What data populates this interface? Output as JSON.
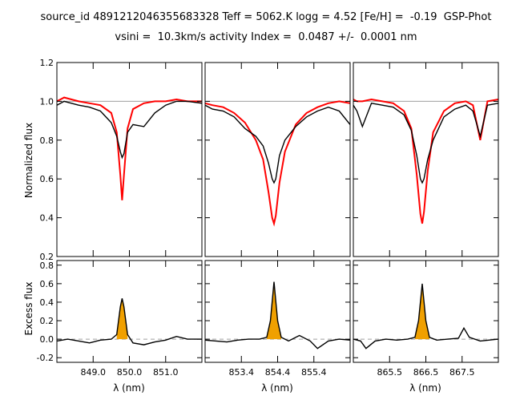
{
  "title": {
    "line1": "source_id 4891212046355683328 Teff = 5062.K logg = 4.52 [Fe/H] =  -0.19  GSP-Phot",
    "line2": "vsini =  10.3km/s activity Index =  0.0487 +/-  0.0001 nm"
  },
  "axes": {
    "top_ylabel": "Normalized flux",
    "bottom_ylabel": "Excess flux",
    "xlabel": "λ (nm)"
  },
  "colors": {
    "observed": "#000000",
    "model": "#ff0000",
    "excess_fill": "#f0a000",
    "reference": "#a0a0a0"
  },
  "chart_data": [
    {
      "type": "line",
      "panel": "normalized-flux-849",
      "ylim": [
        0.2,
        1.2
      ],
      "yticks": [
        "0.2",
        "0.4",
        "0.6",
        "0.8",
        "1.0",
        "1.2"
      ],
      "xlim": [
        848.0,
        852.0
      ],
      "xticks": [
        849.0,
        850.0,
        851.0
      ],
      "center": 849.8,
      "depth_obs": 0.3,
      "depth_model": 0.51,
      "width": 0.09,
      "series": [
        {
          "x": [
            848.0,
            848.2,
            848.4,
            848.6,
            848.9,
            849.2,
            849.5,
            849.65,
            849.75,
            849.8,
            849.85,
            849.95,
            850.1,
            850.4,
            850.7,
            851.0,
            851.3,
            851.6,
            852.0
          ],
          "y": [
            0.98,
            1.0,
            0.99,
            0.98,
            0.97,
            0.95,
            0.89,
            0.82,
            0.74,
            0.71,
            0.73,
            0.84,
            0.88,
            0.87,
            0.94,
            0.98,
            1.0,
            1.0,
            0.99
          ]
        },
        {
          "x": [
            848.0,
            848.2,
            848.4,
            848.6,
            848.9,
            849.2,
            849.5,
            849.65,
            849.75,
            849.8,
            849.85,
            849.95,
            850.1,
            850.4,
            850.7,
            851.0,
            851.3,
            851.6,
            852.0
          ],
          "y": [
            1.0,
            1.02,
            1.01,
            1.0,
            0.99,
            0.98,
            0.94,
            0.84,
            0.62,
            0.49,
            0.62,
            0.86,
            0.96,
            0.99,
            1.0,
            1.0,
            1.01,
            1.0,
            1.0
          ]
        }
      ]
    },
    {
      "type": "line",
      "panel": "normalized-flux-854",
      "ylim": [
        0.2,
        1.2
      ],
      "xlim": [
        852.4,
        856.4
      ],
      "xticks": [
        853.4,
        854.4,
        855.4
      ],
      "series": [
        {
          "x": [
            852.4,
            852.6,
            852.9,
            853.2,
            853.5,
            853.8,
            854.0,
            854.15,
            854.25,
            854.3,
            854.35,
            854.45,
            854.6,
            854.9,
            855.2,
            855.5,
            855.8,
            856.1,
            856.4
          ],
          "y": [
            0.98,
            0.96,
            0.95,
            0.92,
            0.86,
            0.82,
            0.77,
            0.68,
            0.6,
            0.58,
            0.6,
            0.72,
            0.8,
            0.87,
            0.92,
            0.95,
            0.97,
            0.95,
            0.88
          ]
        },
        {
          "x": [
            852.4,
            852.6,
            852.9,
            853.2,
            853.5,
            853.8,
            854.0,
            854.15,
            854.25,
            854.3,
            854.35,
            854.45,
            854.6,
            854.9,
            855.2,
            855.5,
            855.8,
            856.1,
            856.4
          ],
          "y": [
            0.99,
            0.98,
            0.97,
            0.94,
            0.89,
            0.8,
            0.7,
            0.53,
            0.4,
            0.37,
            0.41,
            0.58,
            0.74,
            0.88,
            0.94,
            0.97,
            0.99,
            1.0,
            0.99
          ]
        }
      ]
    },
    {
      "type": "line",
      "panel": "normalized-flux-866",
      "ylim": [
        0.2,
        1.2
      ],
      "xlim": [
        864.5,
        868.5
      ],
      "xticks": [
        865.5,
        866.5,
        867.5
      ],
      "series": [
        {
          "x": [
            864.5,
            864.6,
            864.75,
            865.0,
            865.3,
            865.6,
            865.9,
            866.1,
            866.25,
            866.35,
            866.4,
            866.45,
            866.55,
            866.7,
            867.0,
            867.3,
            867.6,
            867.8,
            868.0,
            868.2,
            868.5
          ],
          "y": [
            0.98,
            0.95,
            0.87,
            0.99,
            0.98,
            0.97,
            0.93,
            0.85,
            0.72,
            0.6,
            0.58,
            0.6,
            0.7,
            0.8,
            0.92,
            0.96,
            0.98,
            0.95,
            0.82,
            0.98,
            0.99
          ]
        },
        {
          "x": [
            864.5,
            864.6,
            864.75,
            865.0,
            865.3,
            865.6,
            865.9,
            866.1,
            866.25,
            866.35,
            866.4,
            866.45,
            866.55,
            866.7,
            867.0,
            867.3,
            867.6,
            867.8,
            868.0,
            868.2,
            868.5
          ],
          "y": [
            1.01,
            1.0,
            1.0,
            1.01,
            1.0,
            0.99,
            0.95,
            0.86,
            0.62,
            0.42,
            0.37,
            0.43,
            0.64,
            0.84,
            0.95,
            0.99,
            1.0,
            0.98,
            0.8,
            1.0,
            1.01
          ]
        }
      ]
    },
    {
      "type": "area",
      "panel": "excess-flux-849",
      "ylim": [
        -0.25,
        0.85
      ],
      "yticks": [
        "-0.2",
        "0.0",
        "0.2",
        "0.4",
        "0.6",
        "0.8"
      ],
      "xlim": [
        848.0,
        852.0
      ],
      "xticks": [
        849.0,
        850.0,
        851.0
      ],
      "series": [
        {
          "x": [
            848.0,
            848.3,
            848.6,
            848.9,
            849.2,
            849.5,
            849.65,
            849.75,
            849.8,
            849.85,
            849.95,
            850.1,
            850.4,
            850.7,
            851.0,
            851.3,
            851.6,
            852.0
          ],
          "y": [
            -0.02,
            0.0,
            -0.02,
            -0.04,
            -0.01,
            0.0,
            0.05,
            0.35,
            0.44,
            0.35,
            0.05,
            -0.04,
            -0.06,
            -0.03,
            -0.01,
            0.03,
            0.0,
            0.0
          ]
        }
      ]
    },
    {
      "type": "area",
      "panel": "excess-flux-854",
      "ylim": [
        -0.25,
        0.85
      ],
      "xlim": [
        852.4,
        856.4
      ],
      "xticks": [
        853.4,
        854.4,
        855.4
      ],
      "series": [
        {
          "x": [
            852.4,
            852.7,
            853.0,
            853.3,
            853.6,
            853.9,
            854.1,
            854.2,
            854.3,
            854.4,
            854.5,
            854.7,
            855.0,
            855.3,
            855.5,
            855.8,
            856.1,
            856.4
          ],
          "y": [
            -0.01,
            -0.02,
            -0.03,
            -0.01,
            0.0,
            0.0,
            0.02,
            0.2,
            0.62,
            0.2,
            0.02,
            -0.02,
            0.04,
            -0.02,
            -0.1,
            -0.02,
            0.0,
            -0.01
          ]
        }
      ]
    },
    {
      "type": "area",
      "panel": "excess-flux-866",
      "ylim": [
        -0.25,
        0.85
      ],
      "xlim": [
        864.5,
        868.5
      ],
      "xticks": [
        865.5,
        866.5,
        867.5
      ],
      "series": [
        {
          "x": [
            864.5,
            864.7,
            864.85,
            865.1,
            865.4,
            865.7,
            866.0,
            866.2,
            866.3,
            866.4,
            866.5,
            866.6,
            866.8,
            867.1,
            867.4,
            867.55,
            867.7,
            868.0,
            868.5
          ],
          "y": [
            0.0,
            -0.02,
            -0.1,
            -0.02,
            0.0,
            -0.01,
            0.0,
            0.02,
            0.2,
            0.6,
            0.2,
            0.02,
            -0.01,
            0.0,
            0.01,
            0.12,
            0.02,
            -0.02,
            0.0
          ]
        }
      ]
    }
  ]
}
